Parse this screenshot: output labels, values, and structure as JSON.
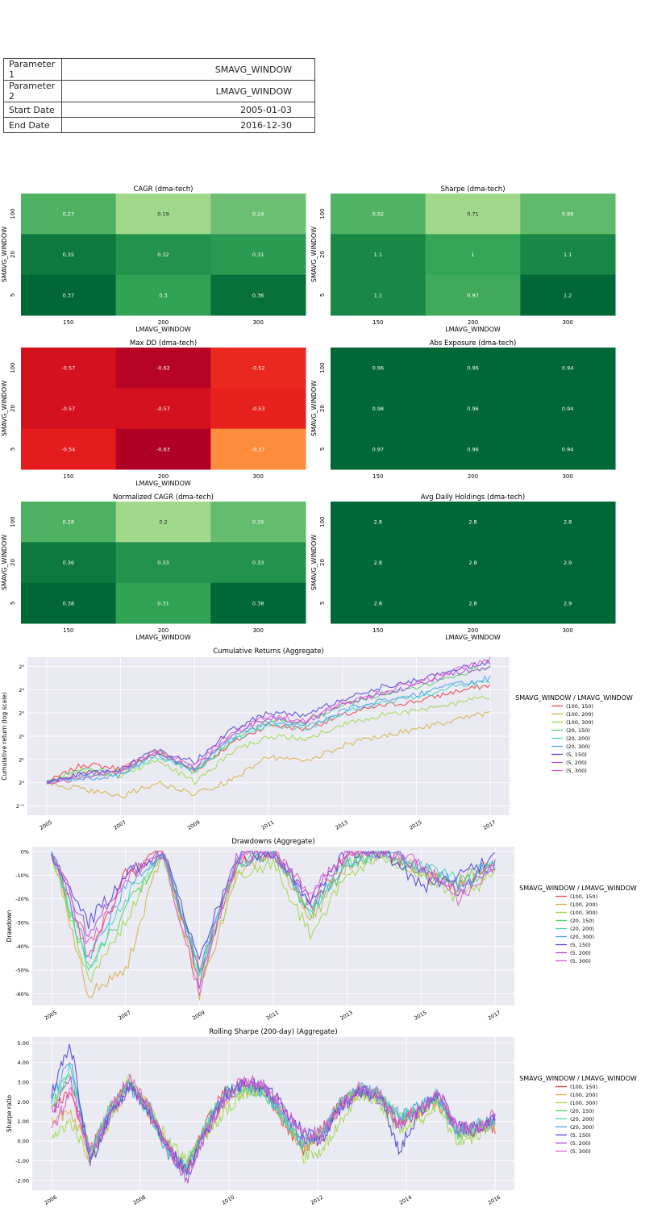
{
  "params": [
    {
      "key": "Parameter 1",
      "value": "SMAVG_WINDOW"
    },
    {
      "key": "Parameter 2",
      "value": "LMAVG_WINDOW"
    },
    {
      "key": "Start Date",
      "value": "2005-01-03"
    },
    {
      "key": "End Date",
      "value": "2016-12-30"
    }
  ],
  "chart_data": [
    {
      "type": "heatmap",
      "title": "CAGR (dma-tech)",
      "ylabel": "SMAVG_WINDOW",
      "xlabel": "LMAVG_WINDOW",
      "rows": [
        "100",
        "20",
        "5"
      ],
      "cols": [
        "150",
        "200",
        "300"
      ],
      "values": [
        [
          0.27,
          0.19,
          0.24
        ],
        [
          0.35,
          0.32,
          0.31
        ],
        [
          0.37,
          0.3,
          0.36
        ]
      ],
      "labels": [
        [
          "0.27",
          "0.19",
          "0.24"
        ],
        [
          "0.35",
          "0.32",
          "0.31"
        ],
        [
          "0.37",
          "0.3",
          "0.36"
        ]
      ],
      "colormap": "greens"
    },
    {
      "type": "heatmap",
      "title": "Sharpe (dma-tech)",
      "ylabel": "SMAVG_WINDOW",
      "xlabel": "LMAVG_WINDOW",
      "rows": [
        "100",
        "20",
        "5"
      ],
      "cols": [
        "150",
        "200",
        "300"
      ],
      "values": [
        [
          0.92,
          0.71,
          0.88
        ],
        [
          1.1,
          1.0,
          1.1
        ],
        [
          1.1,
          0.97,
          1.2
        ]
      ],
      "labels": [
        [
          "0.92",
          "0.71",
          "0.88"
        ],
        [
          "1.1",
          "1",
          "1.1"
        ],
        [
          "1.1",
          "0.97",
          "1.2"
        ]
      ],
      "colormap": "greens"
    },
    {
      "type": "heatmap",
      "title": "Max DD (dma-tech)",
      "ylabel": "SMAVG_WINDOW",
      "xlabel": "LMAVG_WINDOW",
      "rows": [
        "100",
        "20",
        "5"
      ],
      "cols": [
        "150",
        "200",
        "300"
      ],
      "values": [
        [
          -0.57,
          -0.62,
          -0.52
        ],
        [
          -0.57,
          -0.57,
          -0.53
        ],
        [
          -0.54,
          -0.63,
          -0.37
        ]
      ],
      "labels": [
        [
          "-0.57",
          "-0.62",
          "-0.52"
        ],
        [
          "-0.57",
          "-0.57",
          "-0.53"
        ],
        [
          "-0.54",
          "-0.63",
          "-0.37"
        ]
      ],
      "colormap": "reds"
    },
    {
      "type": "heatmap",
      "title": "Abs Exposure (dma-tech)",
      "ylabel": "SMAVG_WINDOW",
      "xlabel": "LMAVG_WINDOW",
      "rows": [
        "100",
        "20",
        "5"
      ],
      "cols": [
        "150",
        "200",
        "300"
      ],
      "values": [
        [
          0.96,
          0.96,
          0.94
        ],
        [
          0.98,
          0.96,
          0.94
        ],
        [
          0.97,
          0.96,
          0.94
        ]
      ],
      "labels": [
        [
          "0.96",
          "0.96",
          "0.94"
        ],
        [
          "0.98",
          "0.96",
          "0.94"
        ],
        [
          "0.97",
          "0.96",
          "0.94"
        ]
      ],
      "colormap": "greens-dark"
    },
    {
      "type": "heatmap",
      "title": "Normalized CAGR (dma-tech)",
      "ylabel": "SMAVG_WINDOW",
      "xlabel": "LMAVG_WINDOW",
      "rows": [
        "100",
        "20",
        "5"
      ],
      "cols": [
        "150",
        "200",
        "300"
      ],
      "values": [
        [
          0.28,
          0.2,
          0.26
        ],
        [
          0.36,
          0.33,
          0.33
        ],
        [
          0.38,
          0.31,
          0.38
        ]
      ],
      "labels": [
        [
          "0.28",
          "0.2",
          "0.26"
        ],
        [
          "0.36",
          "0.33",
          "0.33"
        ],
        [
          "0.38",
          "0.31",
          "0.38"
        ]
      ],
      "colormap": "greens"
    },
    {
      "type": "heatmap",
      "title": "Avg Daily Holdings (dma-tech)",
      "ylabel": "SMAVG_WINDOW",
      "xlabel": "LMAVG_WINDOW",
      "rows": [
        "100",
        "20",
        "5"
      ],
      "cols": [
        "150",
        "200",
        "300"
      ],
      "values": [
        [
          2.8,
          2.8,
          2.8
        ],
        [
          2.8,
          2.8,
          2.9
        ],
        [
          2.8,
          2.8,
          2.9
        ]
      ],
      "labels": [
        [
          "2.8",
          "2.8",
          "2.8"
        ],
        [
          "2.8",
          "2.8",
          "2.9"
        ],
        [
          "2.8",
          "2.8",
          "2.9"
        ]
      ],
      "colormap": "greens-dark"
    },
    {
      "type": "line",
      "title": "Cumulative Returns  (Aggregate)",
      "ylabel": "Cumulative return (log scale)",
      "yscale": "log2",
      "legend_title": "SMAVG_WINDOW / LMAVG_WINDOW",
      "legend": "right",
      "x": [
        "2005-01",
        "2006-01",
        "2007-01",
        "2008-01",
        "2009-01",
        "2010-01",
        "2011-01",
        "2012-01",
        "2013-01",
        "2014-01",
        "2015-01",
        "2016-01",
        "2017-01"
      ],
      "xticks": [
        "2005",
        "2007",
        "2009",
        "2011",
        "2013",
        "2015",
        "2017"
      ],
      "yticks": [
        "2⁻¹",
        "2⁰",
        "2¹",
        "2²",
        "2³",
        "2⁴",
        "2⁵"
      ],
      "ylim": [
        -1.4,
        5.4
      ],
      "series": [
        {
          "name": "(100, 150)",
          "color": "#e8454f",
          "values": [
            0.0,
            0.8,
            0.6,
            1.3,
            0.5,
            1.7,
            2.5,
            2.3,
            2.9,
            3.3,
            3.5,
            3.9,
            4.2
          ]
        },
        {
          "name": "(100, 200)",
          "color": "#d8b04c",
          "values": [
            0.0,
            -0.3,
            -0.6,
            0.0,
            -0.5,
            0.1,
            1.1,
            0.9,
            1.6,
            2.0,
            2.3,
            2.7,
            3.0
          ]
        },
        {
          "name": "(100, 300)",
          "color": "#a0d94f",
          "values": [
            0.0,
            0.5,
            0.3,
            1.0,
            0.0,
            1.3,
            2.0,
            1.9,
            2.5,
            2.9,
            3.1,
            3.4,
            3.7
          ]
        },
        {
          "name": "(20, 150)",
          "color": "#55d468",
          "values": [
            0.0,
            0.6,
            0.5,
            1.4,
            0.4,
            1.8,
            2.7,
            2.6,
            3.3,
            3.8,
            4.1,
            4.6,
            5.0
          ]
        },
        {
          "name": "(20, 200)",
          "color": "#4bd6bd",
          "values": [
            0.0,
            0.3,
            0.4,
            1.1,
            0.5,
            1.8,
            2.5,
            2.3,
            3.0,
            3.4,
            3.7,
            4.1,
            4.4
          ]
        },
        {
          "name": "(20, 300)",
          "color": "#4fa2e8",
          "values": [
            0.0,
            0.2,
            0.3,
            1.2,
            0.5,
            1.9,
            2.6,
            2.4,
            3.1,
            3.5,
            3.8,
            4.2,
            4.5
          ]
        },
        {
          "name": "(5, 150)",
          "color": "#5346d4",
          "values": [
            0.0,
            0.4,
            0.6,
            1.4,
            0.9,
            2.3,
            3.0,
            2.9,
            3.6,
            4.1,
            4.4,
            4.9,
            5.2
          ]
        },
        {
          "name": "(5, 200)",
          "color": "#a64cd8",
          "values": [
            0.0,
            0.4,
            0.5,
            1.3,
            0.6,
            2.1,
            2.8,
            2.6,
            3.4,
            3.8,
            4.2,
            4.7,
            5.0
          ]
        },
        {
          "name": "(5, 300)",
          "color": "#e05cc7",
          "values": [
            0.0,
            0.2,
            0.5,
            1.4,
            0.7,
            2.2,
            2.9,
            2.7,
            3.4,
            3.9,
            4.3,
            4.8,
            5.3
          ]
        }
      ]
    },
    {
      "type": "line",
      "title": "Drawdowns  (Aggregate)",
      "ylabel": "Drawdown",
      "legend_title": "SMAVG_WINDOW / LMAVG_WINDOW",
      "legend": "right",
      "x": [
        "2005-01",
        "2006-01",
        "2007-01",
        "2008-01",
        "2009-01",
        "2010-01",
        "2011-01",
        "2012-01",
        "2013-01",
        "2014-01",
        "2015-01",
        "2016-01",
        "2017-01"
      ],
      "xticks": [
        "2005",
        "2007",
        "2009",
        "2011",
        "2013",
        "2015",
        "2017"
      ],
      "yticks": [
        "0%",
        "-10%",
        "-20%",
        "-30%",
        "-40%",
        "-50%",
        "-60%"
      ],
      "ylim": [
        -0.65,
        0.02
      ],
      "series": [
        {
          "name": "(100, 150)",
          "color": "#e8454f",
          "values": [
            0.0,
            -0.45,
            -0.1,
            0.0,
            -0.5,
            -0.05,
            0.0,
            -0.25,
            0.0,
            0.0,
            -0.1,
            -0.15,
            -0.05
          ]
        },
        {
          "name": "(100, 200)",
          "color": "#d8b04c",
          "values": [
            0.0,
            -0.6,
            -0.5,
            0.0,
            -0.6,
            -0.1,
            0.0,
            -0.3,
            -0.05,
            0.0,
            -0.08,
            -0.12,
            -0.05
          ]
        },
        {
          "name": "(100, 300)",
          "color": "#a0d94f",
          "values": [
            0.0,
            -0.55,
            -0.3,
            0.0,
            -0.55,
            -0.1,
            -0.05,
            -0.35,
            -0.1,
            -0.02,
            -0.1,
            -0.2,
            -0.1
          ]
        },
        {
          "name": "(20, 150)",
          "color": "#55d468",
          "values": [
            0.0,
            -0.5,
            -0.25,
            0.0,
            -0.52,
            -0.05,
            0.0,
            -0.28,
            -0.05,
            0.0,
            -0.08,
            -0.15,
            -0.05
          ]
        },
        {
          "name": "(20, 200)",
          "color": "#4bd6bd",
          "values": [
            0.0,
            -0.5,
            -0.2,
            0.0,
            -0.5,
            -0.05,
            0.0,
            -0.25,
            -0.05,
            0.0,
            -0.06,
            -0.12,
            -0.05
          ]
        },
        {
          "name": "(20, 300)",
          "color": "#4fa2e8",
          "values": [
            0.0,
            -0.45,
            -0.15,
            0.0,
            -0.5,
            -0.05,
            0.0,
            -0.24,
            -0.04,
            0.0,
            -0.07,
            -0.14,
            -0.05
          ]
        },
        {
          "name": "(5, 150)",
          "color": "#5346d4",
          "values": [
            0.0,
            -0.3,
            -0.1,
            0.0,
            -0.45,
            -0.02,
            0.0,
            -0.2,
            0.0,
            0.0,
            -0.15,
            -0.1,
            -0.03
          ]
        },
        {
          "name": "(5, 200)",
          "color": "#a64cd8",
          "values": [
            0.0,
            -0.35,
            -0.1,
            0.0,
            -0.55,
            -0.03,
            0.0,
            -0.2,
            0.0,
            0.0,
            -0.06,
            -0.18,
            -0.04
          ]
        },
        {
          "name": "(5, 300)",
          "color": "#e05cc7",
          "values": [
            0.0,
            -0.4,
            -0.12,
            0.0,
            -0.6,
            -0.02,
            0.0,
            -0.18,
            0.0,
            0.0,
            -0.05,
            -0.2,
            -0.06
          ]
        }
      ]
    },
    {
      "type": "line",
      "title": "Rolling Sharpe (200-day)  (Aggregate)",
      "ylabel": "Sharpe ratio",
      "legend_title": "SMAVG_WINDOW / LMAVG_WINDOW",
      "legend": "right",
      "x": [
        "2005-10",
        "2006-04",
        "2006-10",
        "2007-04",
        "2007-10",
        "2008-04",
        "2008-10",
        "2009-04",
        "2009-10",
        "2010-04",
        "2010-10",
        "2011-04",
        "2011-10",
        "2012-04",
        "2012-10",
        "2013-04",
        "2013-10",
        "2014-04",
        "2014-10",
        "2015-04",
        "2015-10",
        "2016-04",
        "2016-10",
        "2017-01"
      ],
      "xticks": [
        "2006",
        "2008",
        "2010",
        "2012",
        "2014",
        "2016"
      ],
      "yticks": [
        "5.00",
        "4.00",
        "3.00",
        "2.00",
        "1.00",
        "0.00",
        "-1.00",
        "-2.00"
      ],
      "ylim": [
        -2.5,
        5.3
      ],
      "series": [
        {
          "name": "(100, 150)",
          "color": "#e8454f",
          "values": [
            1.5,
            2.5,
            -0.5,
            1.5,
            3.0,
            1.5,
            -0.5,
            -1.5,
            1.0,
            2.5,
            2.8,
            2.5,
            1.0,
            -0.5,
            0.5,
            2.0,
            2.5,
            2.3,
            1.0,
            1.5,
            2.0,
            0.5,
            0.8,
            0.7
          ]
        },
        {
          "name": "(100, 200)",
          "color": "#d8b04c",
          "values": [
            1.0,
            1.5,
            -0.8,
            1.0,
            2.8,
            1.8,
            -0.3,
            -1.3,
            0.5,
            2.0,
            2.6,
            2.5,
            1.2,
            -0.3,
            0.3,
            1.8,
            2.6,
            2.4,
            1.0,
            1.4,
            2.1,
            0.6,
            0.4,
            0.8
          ]
        },
        {
          "name": "(100, 300)",
          "color": "#a0d94f",
          "values": [
            0.0,
            1.0,
            -1.0,
            1.0,
            3.2,
            2.0,
            0.0,
            -1.0,
            0.3,
            1.5,
            2.5,
            2.6,
            1.5,
            -0.8,
            -0.5,
            1.0,
            2.4,
            2.0,
            0.5,
            1.0,
            1.8,
            0.0,
            0.2,
            1.2
          ]
        },
        {
          "name": "(20, 150)",
          "color": "#55d468",
          "values": [
            1.8,
            3.5,
            -0.6,
            1.6,
            3.0,
            1.7,
            -0.5,
            -1.4,
            0.8,
            2.5,
            2.7,
            2.4,
            1.1,
            -0.2,
            0.4,
            1.9,
            2.6,
            2.3,
            1.1,
            1.5,
            2.3,
            0.4,
            0.6,
            0.9
          ]
        },
        {
          "name": "(20, 200)",
          "color": "#4bd6bd",
          "values": [
            2.0,
            3.8,
            -0.7,
            1.5,
            2.9,
            1.6,
            -0.4,
            -1.3,
            0.7,
            2.3,
            2.6,
            2.5,
            1.2,
            0.0,
            0.5,
            2.0,
            2.5,
            2.4,
            1.2,
            1.6,
            2.4,
            0.6,
            0.7,
            1.0
          ]
        },
        {
          "name": "(20, 300)",
          "color": "#4fa2e8",
          "values": [
            2.2,
            4.2,
            -0.8,
            1.4,
            2.8,
            1.7,
            -0.6,
            -1.5,
            0.6,
            2.4,
            2.8,
            2.6,
            1.3,
            -0.1,
            0.3,
            1.8,
            2.7,
            2.5,
            1.3,
            1.7,
            2.2,
            0.5,
            0.8,
            1.1
          ]
        },
        {
          "name": "(5, 150)",
          "color": "#5346d4",
          "values": [
            2.5,
            4.9,
            -1.2,
            1.3,
            2.8,
            1.6,
            -0.3,
            -1.5,
            0.5,
            2.5,
            3.0,
            2.8,
            1.8,
            0.5,
            0.0,
            1.7,
            2.6,
            2.4,
            -0.5,
            1.4,
            2.5,
            0.8,
            0.5,
            1.3
          ]
        },
        {
          "name": "(5, 200)",
          "color": "#a64cd8",
          "values": [
            1.5,
            3.0,
            -1.0,
            1.2,
            2.7,
            1.8,
            -0.2,
            -2.0,
            0.4,
            2.2,
            3.0,
            2.7,
            1.6,
            0.2,
            0.2,
            1.9,
            2.5,
            2.2,
            0.8,
            1.5,
            2.3,
            0.7,
            0.6,
            1.2
          ]
        },
        {
          "name": "(5, 300)",
          "color": "#e05cc7",
          "values": [
            0.5,
            2.5,
            -0.5,
            1.5,
            3.2,
            1.9,
            -0.3,
            -1.8,
            0.5,
            2.2,
            3.2,
            2.8,
            1.7,
            0.6,
            0.3,
            1.8,
            2.8,
            2.4,
            0.9,
            1.6,
            2.5,
            0.9,
            0.5,
            1.5
          ]
        }
      ]
    }
  ]
}
